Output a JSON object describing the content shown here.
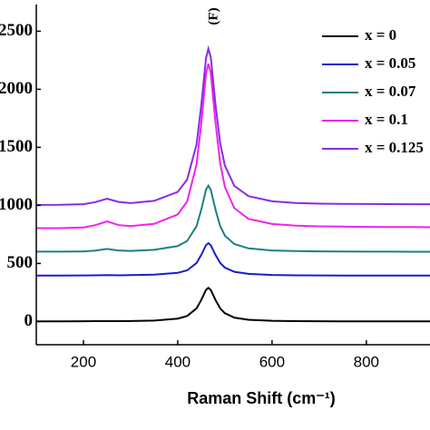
{
  "chart_data": {
    "type": "line",
    "xlabel": "Raman Shift (cm⁻¹)",
    "annotation": "(F)",
    "x": [
      100,
      150,
      200,
      225,
      250,
      275,
      300,
      350,
      400,
      420,
      440,
      450,
      460,
      465,
      470,
      480,
      490,
      500,
      520,
      550,
      600,
      650,
      700,
      750,
      800,
      850,
      900,
      935
    ],
    "series": [
      {
        "name": "x = 0",
        "color": "#000000",
        "values": [
          1,
          1,
          2,
          3,
          3,
          3,
          4,
          8,
          25,
          48,
          113,
          186,
          273,
          290,
          273,
          186,
          113,
          71,
          34,
          15,
          6,
          3,
          2,
          1,
          1,
          1,
          1,
          1
        ]
      },
      {
        "name": "x = 0.05",
        "color": "#1c1ccf",
        "values": [
          396,
          396,
          397,
          398,
          400,
          398,
          399,
          403,
          419,
          441,
          504,
          574,
          658,
          675,
          658,
          574,
          504,
          464,
          428,
          410,
          401,
          398,
          397,
          396,
          396,
          396,
          396,
          396
        ]
      },
      {
        "name": "x = 0.07",
        "color": "#1f7f7f",
        "values": [
          602,
          602,
          604,
          610,
          625,
          612,
          608,
          617,
          649,
          694,
          822,
          965,
          1136,
          1170,
          1136,
          965,
          822,
          740,
          667,
          630,
          612,
          607,
          604,
          603,
          602,
          602,
          601,
          601
        ]
      },
      {
        "name": "x = 0.1",
        "color": "#ee22ee",
        "values": [
          804,
          804,
          810,
          830,
          862,
          830,
          821,
          841,
          922,
          1034,
          1354,
          1709,
          2135,
          2220,
          2145,
          1719,
          1364,
          1159,
          977,
          884,
          840,
          826,
          820,
          817,
          815,
          814,
          813,
          812
        ]
      },
      {
        "name": "x = 0.125",
        "color": "#8a2be2",
        "values": [
          1004,
          1005,
          1010,
          1028,
          1057,
          1030,
          1020,
          1039,
          1116,
          1223,
          1527,
          1864,
          2269,
          2350,
          2279,
          1874,
          1537,
          1342,
          1168,
          1080,
          1035,
          1021,
          1015,
          1013,
          1012,
          1011,
          1010,
          1010
        ]
      }
    ],
    "xlim": [
      100,
      935
    ],
    "xticks": [
      200,
      400,
      600,
      800
    ],
    "ylim": [
      -200,
      2730
    ],
    "yticks": [
      0,
      500,
      1000,
      1500,
      2000,
      2500
    ],
    "legend": "upper right"
  }
}
